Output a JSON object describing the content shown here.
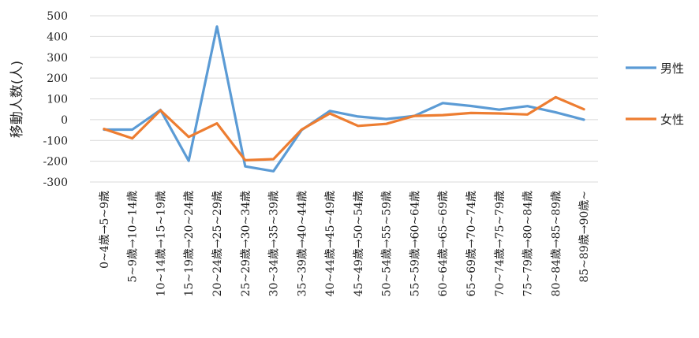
{
  "chart_data": {
    "type": "line",
    "title": "",
    "xlabel": "",
    "ylabel": "移動人数(人)",
    "ylim": [
      -300,
      500
    ],
    "yticks": [
      500,
      400,
      300,
      200,
      100,
      0,
      -100,
      -200,
      -300
    ],
    "grid": true,
    "legend_position": "right",
    "categories": [
      "0~4歳→5~9歳",
      "5~9歳→10~14歳",
      "10~14歳→15~19歳",
      "15~19歳→20~24歳",
      "20~24歳→25~29歳",
      "25~29歳→30~34歳",
      "30~34歳→35~39歳",
      "35~39歳→40~44歳",
      "40~44歳→45~49歳",
      "45~49歳→50~54歳",
      "50~54歳→55~59歳",
      "55~59歳→60~64歳",
      "60~64歳→65~69歳",
      "65~69歳→70~74歳",
      "70~74歳→75~79歳",
      "75~79歳→80~84歳",
      "80~84歳→85~89歳",
      "85~89歳→90歳~"
    ],
    "series": [
      {
        "name": "男性",
        "color": "#5B9BD5",
        "values": [
          -48,
          -48,
          47,
          -198,
          448,
          -225,
          -248,
          -50,
          42,
          15,
          3,
          18,
          80,
          66,
          48,
          65,
          35,
          0
        ]
      },
      {
        "name": "女性",
        "color": "#ED7D31",
        "values": [
          -45,
          -90,
          45,
          -83,
          -18,
          -195,
          -190,
          -48,
          30,
          -30,
          -20,
          18,
          22,
          32,
          30,
          25,
          108,
          50
        ]
      }
    ]
  }
}
